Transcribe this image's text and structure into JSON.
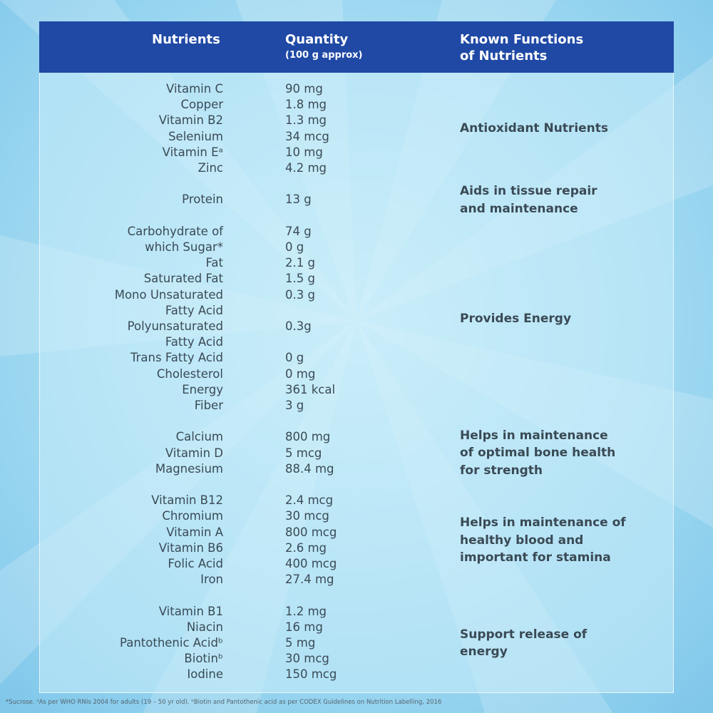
{
  "header": {
    "nutrients": "Nutrients",
    "quantity": "Quantity",
    "quantity_note": "(100 g approx)",
    "functions": [
      "Known Functions",
      "of Nutrients"
    ]
  },
  "groups": [
    {
      "function": [
        "Antioxidant Nutrients"
      ],
      "items": [
        {
          "nutrient": [
            "Vitamin C"
          ],
          "quantity": "90 mg"
        },
        {
          "nutrient": [
            "Copper"
          ],
          "quantity": "1.8 mg"
        },
        {
          "nutrient": [
            "Vitamin B2"
          ],
          "quantity": "1.3 mg"
        },
        {
          "nutrient": [
            "Selenium"
          ],
          "quantity": "34 mcg"
        },
        {
          "nutrient": [
            "Vitamin Eᵃ"
          ],
          "quantity": "10 mg"
        },
        {
          "nutrient": [
            "Zinc"
          ],
          "quantity": "4.2 mg"
        }
      ]
    },
    {
      "function": [
        "Aids in tissue repair",
        "and maintenance"
      ],
      "items": [
        {
          "nutrient": [
            "Protein"
          ],
          "quantity": "13 g"
        }
      ]
    },
    {
      "function": [
        "Provides Energy"
      ],
      "items": [
        {
          "nutrient": [
            "Carbohydrate of"
          ],
          "quantity": "74 g"
        },
        {
          "nutrient": [
            "which Sugar*"
          ],
          "quantity": "0 g"
        },
        {
          "nutrient": [
            "Fat"
          ],
          "quantity": "2.1 g"
        },
        {
          "nutrient": [
            "Saturated Fat"
          ],
          "quantity": "1.5 g"
        },
        {
          "nutrient": [
            "Mono Unsaturated",
            "Fatty Acid"
          ],
          "quantity": "0.3 g"
        },
        {
          "nutrient": [
            "Polyunsaturated",
            "Fatty Acid"
          ],
          "quantity": "0.3g"
        },
        {
          "nutrient": [
            "Trans Fatty Acid"
          ],
          "quantity": "0 g"
        },
        {
          "nutrient": [
            "Cholesterol"
          ],
          "quantity": "0 mg"
        },
        {
          "nutrient": [
            "Energy"
          ],
          "quantity": "361 kcal"
        },
        {
          "nutrient": [
            "Fiber"
          ],
          "quantity": "3 g"
        }
      ]
    },
    {
      "function": [
        "Helps in maintenance",
        "of optimal bone health",
        "for strength"
      ],
      "items": [
        {
          "nutrient": [
            "Calcium"
          ],
          "quantity": "800 mg"
        },
        {
          "nutrient": [
            "Vitamin D"
          ],
          "quantity": "5 mcg"
        },
        {
          "nutrient": [
            "Magnesium"
          ],
          "quantity": "88.4 mg"
        }
      ]
    },
    {
      "function": [
        "Helps in maintenance of",
        "healthy blood and",
        "important for stamina"
      ],
      "items": [
        {
          "nutrient": [
            "Vitamin B12"
          ],
          "quantity": "2.4 mcg"
        },
        {
          "nutrient": [
            "Chromium"
          ],
          "quantity": "30 mcg"
        },
        {
          "nutrient": [
            "Vitamin A"
          ],
          "quantity": "800 mcg"
        },
        {
          "nutrient": [
            "Vitamin B6"
          ],
          "quantity": "2.6 mg"
        },
        {
          "nutrient": [
            "Folic Acid"
          ],
          "quantity": "400 mcg"
        },
        {
          "nutrient": [
            "Iron"
          ],
          "quantity": "27.4 mg"
        }
      ]
    },
    {
      "function": [
        "Support release of",
        "energy"
      ],
      "items": [
        {
          "nutrient": [
            "Vitamin B1"
          ],
          "quantity": "1.2 mg"
        },
        {
          "nutrient": [
            "Niacin"
          ],
          "quantity": "16 mg"
        },
        {
          "nutrient": [
            "Pantothenic Acidᵇ"
          ],
          "quantity": "5 mg"
        },
        {
          "nutrient": [
            "Biotinᵇ"
          ],
          "quantity": "30 mcg"
        },
        {
          "nutrient": [
            "Iodine"
          ],
          "quantity": "150 mcg"
        }
      ]
    }
  ],
  "footnote": "*Sucrose. ᵃAs per WHO RNIs 2004 for adults (19 – 50 yr old). ᵇBiotin and Pantothenic acid as per CODEX Guidelines on Nutrition Labelling, 2016"
}
